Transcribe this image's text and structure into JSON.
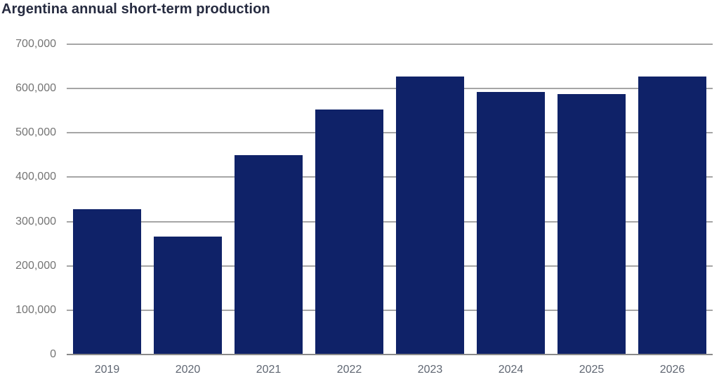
{
  "chart_data": {
    "type": "bar",
    "title": "Argentina annual short-term production",
    "categories": [
      "2019",
      "2020",
      "2021",
      "2022",
      "2023",
      "2024",
      "2025",
      "2026"
    ],
    "values": [
      328000,
      266000,
      450000,
      553000,
      627000,
      593000,
      587000,
      627000
    ],
    "xlabel": "",
    "ylabel": "",
    "ylim": [
      0,
      700000
    ],
    "ytick_step": 100000,
    "ytick_labels": [
      "0",
      "100,000",
      "200,000",
      "300,000",
      "400,000",
      "500,000",
      "600,000",
      "700,000"
    ],
    "grid": "horizontal-only",
    "legend": "none",
    "colors": {
      "bar": "#0f2268",
      "gridline": "#a6a6a6",
      "baseline": "#8a8a8a",
      "title": "#262b40",
      "y_axis_labels": "#747474",
      "x_axis_labels": "#5f6672",
      "background": "#ffffff"
    }
  }
}
